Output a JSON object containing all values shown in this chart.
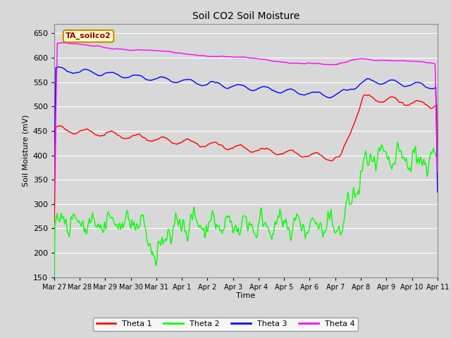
{
  "title": "Soil CO2 Soil Moisture",
  "xlabel": "Time",
  "ylabel": "Soil Moisture (mV)",
  "ylim": [
    150,
    670
  ],
  "yticks": [
    150,
    200,
    250,
    300,
    350,
    400,
    450,
    500,
    550,
    600,
    650
  ],
  "sensor_label": "TA_soilco2",
  "background_color": "#d8d8d8",
  "plot_bg_color": "#d8d8d8",
  "grid_color": "white",
  "colors": {
    "theta1": "red",
    "theta2": "lime",
    "theta3": "blue",
    "theta4": "magenta"
  },
  "legend": [
    "Theta 1",
    "Theta 2",
    "Theta 3",
    "Theta 4"
  ],
  "x_tick_labels": [
    "Mar 27",
    "Mar 28",
    "Mar 29",
    "Mar 30",
    "Mar 31",
    "Apr 1",
    "Apr 2",
    "Apr 3",
    "Apr 4",
    "Apr 5",
    "Apr 6",
    "Apr 7",
    "Apr 8",
    "Apr 9",
    "Apr 10",
    "Apr 11"
  ]
}
